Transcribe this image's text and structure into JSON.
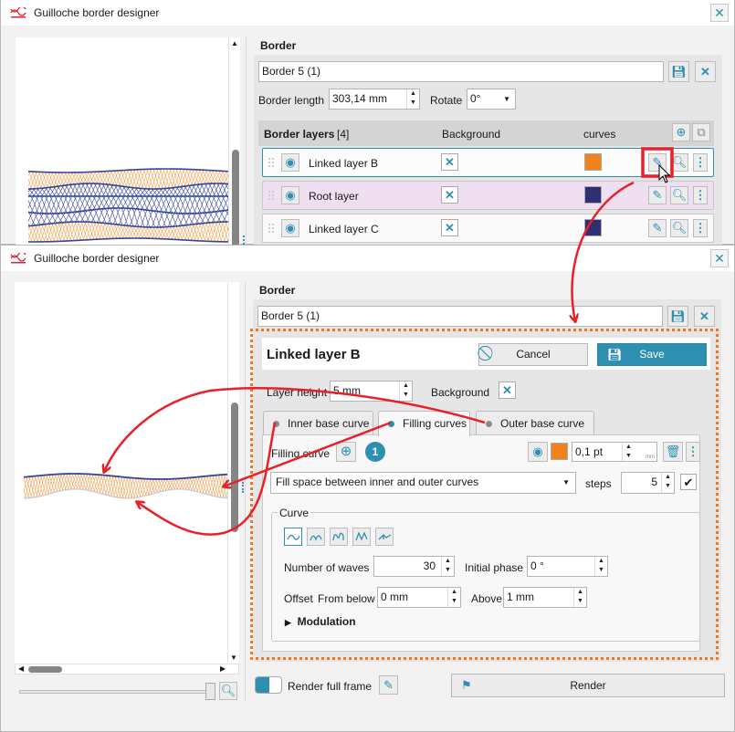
{
  "app_title": "Guilloche border designer",
  "colors": {
    "accent": "#2e8fb0",
    "orange": "#f0821e",
    "navy": "#2f2f73",
    "annotation_red": "#e8202a",
    "highlight_dots": "#f07820",
    "root_row": "#efdff0"
  },
  "top_window": {
    "section_title": "Border",
    "border_name": "Border 5 (1)",
    "border_length_label": "Border length",
    "border_length_value": "303,14 mm",
    "rotate_label": "Rotate",
    "rotate_value": "0°",
    "layers_header": {
      "title": "Border layers",
      "count": "[4]",
      "background_col": "Background",
      "curves_col": "curves"
    },
    "layers": [
      {
        "name": "Linked layer B",
        "background_checked": true,
        "curve_color": "#f0821e",
        "selected": true
      },
      {
        "name": "Root layer",
        "background_checked": true,
        "curve_color": "#2f2f73",
        "selected": false
      },
      {
        "name": "Linked layer C",
        "background_checked": true,
        "curve_color": "#2f2f73",
        "selected": false
      }
    ]
  },
  "bottom_window": {
    "section_title": "Border",
    "border_name": "Border 5 (1)",
    "editor": {
      "layer_name": "Linked layer B",
      "cancel_label": "Cancel",
      "save_label": "Save",
      "layer_height_label": "Layer height",
      "layer_height_value": "5 mm",
      "background_label": "Background",
      "background_checked": true,
      "tabs": [
        {
          "label": "Inner base curve",
          "active": false
        },
        {
          "label": "Filling curves",
          "active": true
        },
        {
          "label": "Outer base curve",
          "active": false
        }
      ],
      "filling_curve_label": "Filling curve",
      "filling_curve_count": "1",
      "stroke_color": "#f0821e",
      "stroke_width": "0,1 pt",
      "unit_toggle": "mm",
      "fill_mode": "Fill space between inner and outer curves",
      "steps_label": "steps",
      "steps_value": "5",
      "steps_checked": true,
      "curve_group": {
        "title": "Curve",
        "wave_types": [
          "sine-wave",
          "arch-wave",
          "loop-wave",
          "peak-wave",
          "custom-wave"
        ],
        "selected_wave_type": "sine-wave",
        "waves_label": "Number of waves",
        "waves_value": "30",
        "phase_label": "Initial phase",
        "phase_value": "0 °",
        "offset_label": "Offset",
        "from_below_label": "From below",
        "from_below_value": "0 mm",
        "above_label": "Above",
        "above_value": "1 mm",
        "modulation_label": "Modulation"
      }
    },
    "render_full_frame_label": "Render full frame",
    "render_full_frame_on": true,
    "render_label": "Render"
  }
}
